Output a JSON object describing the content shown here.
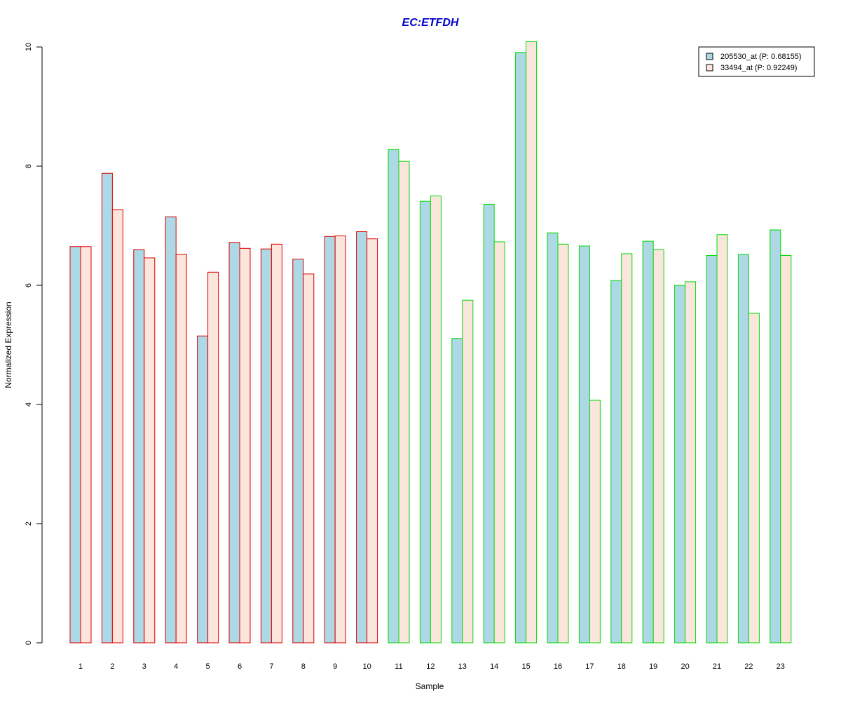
{
  "chart_data": {
    "type": "bar",
    "title": "EC:ETFDH",
    "xlabel": "Sample",
    "ylabel": "Normalized Expression",
    "ylim": [
      0,
      10
    ],
    "yticks": [
      "0",
      "2",
      "4",
      "6",
      "8",
      "10"
    ],
    "categories": [
      "1",
      "2",
      "3",
      "4",
      "5",
      "6",
      "7",
      "8",
      "9",
      "10",
      "11",
      "12",
      "13",
      "14",
      "15",
      "16",
      "17",
      "18",
      "19",
      "20",
      "21",
      "22",
      "23"
    ],
    "series": [
      {
        "name": "205530_at (P: 0.68155)",
        "fill": "#add8e6",
        "values": [
          6.65,
          7.88,
          6.6,
          7.15,
          5.15,
          6.72,
          6.61,
          6.44,
          6.82,
          6.9,
          8.28,
          7.41,
          5.11,
          7.36,
          9.91,
          6.88,
          6.66,
          6.08,
          6.74,
          6.0,
          6.5,
          6.52,
          6.93
        ]
      },
      {
        "name": "33494_at (P: 0.92249)",
        "fill": "#fbe5dd",
        "values": [
          6.65,
          7.27,
          6.46,
          6.52,
          6.22,
          6.62,
          6.69,
          6.19,
          6.83,
          6.78,
          8.08,
          7.5,
          5.75,
          6.73,
          10.09,
          6.69,
          4.07,
          6.53,
          6.6,
          6.06,
          6.85,
          5.53,
          6.5
        ]
      }
    ],
    "group_border_colors": [
      "#dd0000",
      "#dd0000",
      "#dd0000",
      "#dd0000",
      "#dd0000",
      "#dd0000",
      "#dd0000",
      "#dd0000",
      "#dd0000",
      "#dd0000",
      "#00dd00",
      "#00dd00",
      "#00dd00",
      "#00dd00",
      "#00dd00",
      "#00dd00",
      "#00dd00",
      "#00dd00",
      "#00dd00",
      "#00dd00",
      "#00dd00",
      "#00dd00",
      "#00dd00"
    ],
    "legend": {
      "position": "top-right"
    },
    "grid": false
  }
}
